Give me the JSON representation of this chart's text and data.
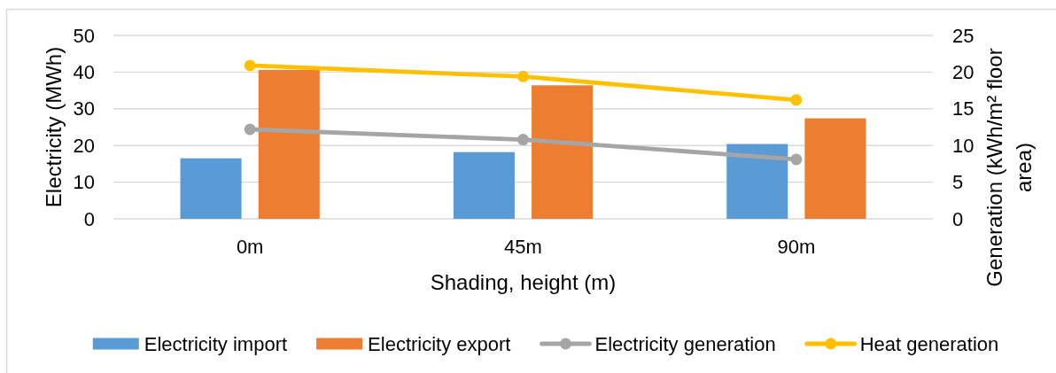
{
  "chart_data": {
    "type": "bar",
    "xlabel": "Shading, height (m)",
    "ylabel": "Electricity (MWh)",
    "y2label": "Generation (kWh/m² floor area)",
    "categories": [
      "0m",
      "45m",
      "90m"
    ],
    "series": [
      {
        "name": "Electricity import",
        "color": "#5b9bd5",
        "values": [
          16.5,
          18.2,
          20.4
        ]
      },
      {
        "name": "Electricity export",
        "color": "#ed7d31",
        "values": [
          40.6,
          36.4,
          27.4
        ]
      },
      {
        "name": "Electricity generation",
        "type": "line",
        "axis": "y2",
        "color": "#a5a5a5",
        "values": [
          12.2,
          10.8,
          8.1
        ]
      },
      {
        "name": "Heat generation",
        "type": "line",
        "axis": "y2",
        "color": "#ffc000",
        "values": [
          20.9,
          19.4,
          16.2
        ]
      }
    ],
    "ylim": [
      0,
      50
    ],
    "yticks": [
      0,
      10,
      20,
      30,
      40,
      50
    ],
    "y2lim": [
      0,
      25
    ],
    "y2ticks": [
      0,
      5,
      10,
      15,
      20,
      25
    ],
    "grid": "y",
    "legend": "bottom",
    "marker": "circle"
  }
}
